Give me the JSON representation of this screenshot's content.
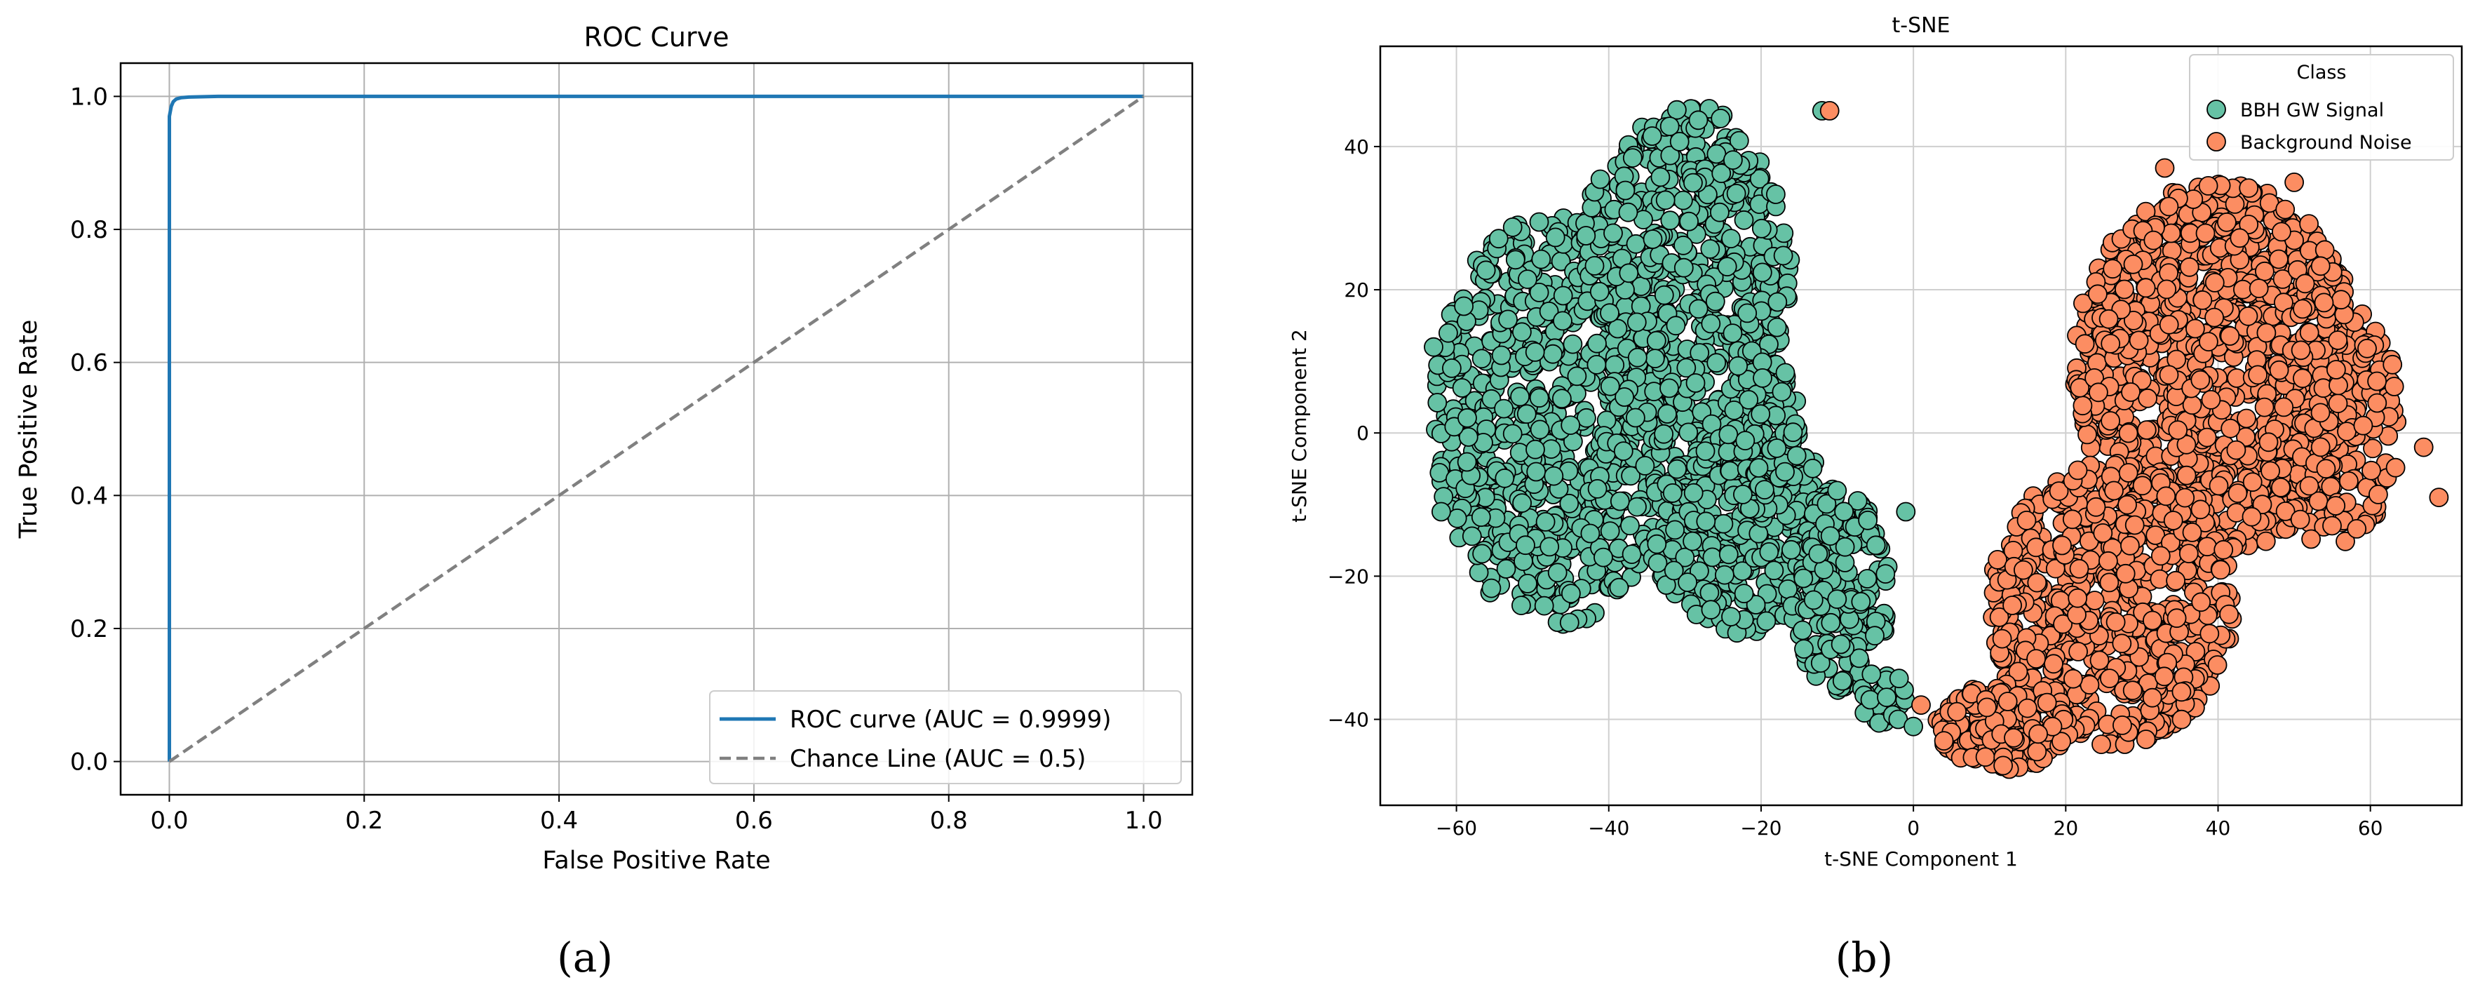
{
  "chart_data": [
    {
      "panel_label": "(a)",
      "type": "line",
      "title": "ROC Curve",
      "xlabel": "False Positive Rate",
      "ylabel": "True Positive Rate",
      "xlim": [
        -0.05,
        1.05
      ],
      "ylim": [
        -0.05,
        1.05
      ],
      "xticks": [
        0.0,
        0.2,
        0.4,
        0.6,
        0.8,
        1.0
      ],
      "yticks": [
        0.0,
        0.2,
        0.4,
        0.6,
        0.8,
        1.0
      ],
      "xtick_labels": [
        "0.0",
        "0.2",
        "0.4",
        "0.6",
        "0.8",
        "1.0"
      ],
      "ytick_labels": [
        "0.0",
        "0.2",
        "0.4",
        "0.6",
        "0.8",
        "1.0"
      ],
      "grid": true,
      "legend_position": "lower-right",
      "series": [
        {
          "name": "ROC curve (AUC = 0.9999)",
          "color": "#1f77b4",
          "style": "solid",
          "x": [
            0.0,
            0.0,
            0.0,
            0.002,
            0.004,
            0.007,
            0.012,
            0.02,
            0.05,
            0.2,
            0.5,
            1.0
          ],
          "y": [
            0.0,
            0.85,
            0.97,
            0.985,
            0.992,
            0.996,
            0.998,
            0.999,
            1.0,
            1.0,
            1.0,
            1.0
          ]
        },
        {
          "name": "Chance Line (AUC = 0.5)",
          "color": "#808080",
          "style": "dashed",
          "x": [
            0.0,
            1.0
          ],
          "y": [
            0.0,
            1.0
          ]
        }
      ]
    },
    {
      "panel_label": "(b)",
      "type": "scatter",
      "title": "t-SNE",
      "xlabel": "t-SNE Component 1",
      "ylabel": "t-SNE Component 2",
      "xlim": [
        -70,
        72
      ],
      "ylim": [
        -52,
        54
      ],
      "xticks": [
        -60,
        -40,
        -20,
        0,
        20,
        40,
        60
      ],
      "yticks": [
        -40,
        -20,
        0,
        20,
        40
      ],
      "xtick_labels": [
        "−60",
        "−40",
        "−20",
        "0",
        "20",
        "40",
        "60"
      ],
      "ytick_labels": [
        "−40",
        "−20",
        "0",
        "20",
        "40"
      ],
      "grid": true,
      "legend_title": "Class",
      "legend_position": "upper-right",
      "series": [
        {
          "name": "BBH GW Signal",
          "color": "#66c2a5",
          "edge_color": "#000000",
          "regions": [
            {
              "cx": -47,
              "cy": 2,
              "rx": 16,
              "ry": 29,
              "count": 720
            },
            {
              "cx": -30,
              "cy": 22,
              "rx": 14,
              "ry": 24,
              "count": 520
            },
            {
              "cx": -22,
              "cy": -14,
              "rx": 13,
              "ry": 14,
              "count": 380
            },
            {
              "cx": -20,
              "cy": 0,
              "rx": 5,
              "ry": 12,
              "count": 150
            },
            {
              "cx": -10,
              "cy": -22,
              "rx": 7,
              "ry": 14,
              "count": 170
            },
            {
              "cx": -4,
              "cy": -37,
              "rx": 3,
              "ry": 4,
              "count": 35
            }
          ],
          "extra_points": [
            [
              -62,
              -11
            ],
            [
              -63,
              12
            ],
            [
              -12,
              45
            ],
            [
              -2,
              -40
            ],
            [
              0,
              -41
            ],
            [
              -1,
              -11
            ]
          ]
        },
        {
          "name": "Background Noise",
          "color": "#fc8d62",
          "edge_color": "#000000",
          "regions": [
            {
              "cx": 40,
              "cy": 9,
              "rx": 19,
              "ry": 26,
              "count": 1050
            },
            {
              "cx": 26,
              "cy": -24,
              "rx": 16,
              "ry": 20,
              "count": 620
            },
            {
              "cx": 12,
              "cy": -41,
              "rx": 9,
              "ry": 6,
              "count": 160
            },
            {
              "cx": 55,
              "cy": 2,
              "rx": 9,
              "ry": 18,
              "count": 200
            }
          ],
          "extra_points": [
            [
              -11,
              45
            ],
            [
              69,
              -9
            ],
            [
              67,
              -2
            ],
            [
              1,
              -38
            ],
            [
              33,
              37
            ],
            [
              50,
              35
            ],
            [
              4,
              -43
            ]
          ]
        }
      ]
    }
  ]
}
